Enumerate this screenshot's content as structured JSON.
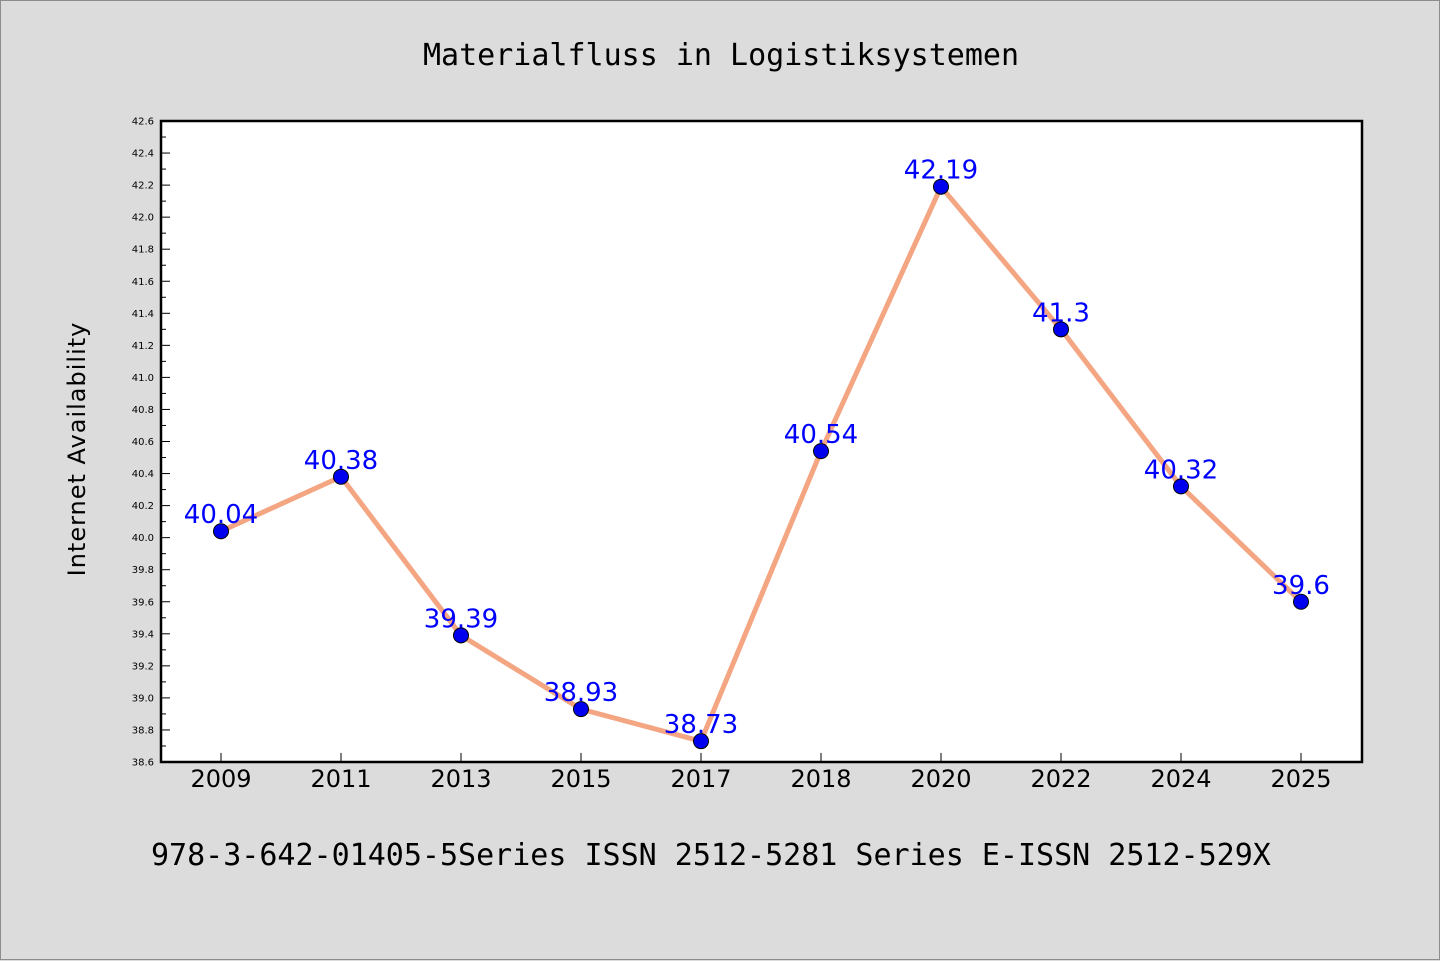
{
  "footer_text": "978-3-642-01405-5Series ISSN 2512-5281 Series E-ISSN 2512-529X",
  "colors": {
    "background": "#dcdcdc",
    "plot_background": "#ffffff",
    "line": "#f4a582",
    "marker": "#0000ee",
    "data_label": "#0000ff"
  },
  "chart_data": {
    "type": "line",
    "title": "Materialfluss in Logistiksystemen",
    "xlabel": "",
    "ylabel": "Internet Availability",
    "categories": [
      "2009",
      "2011",
      "2013",
      "2015",
      "2017",
      "2018",
      "2020",
      "2022",
      "2024",
      "2025"
    ],
    "series": [
      {
        "values": [
          40.04,
          40.38,
          39.39,
          38.93,
          38.73,
          40.54,
          42.19,
          41.3,
          40.32,
          39.6
        ],
        "labels": [
          "40.04",
          "40.38",
          "39.39",
          "38.93",
          "38.73",
          "40.54",
          "42.19",
          "41.3",
          "40.32",
          "39.6"
        ]
      }
    ],
    "ylim": [
      38.6,
      42.6
    ],
    "y_major_step": 0.2,
    "y_ticks": [
      "38.6",
      "38.8",
      "39.0",
      "39.2",
      "39.4",
      "39.6",
      "39.8",
      "40.0",
      "40.2",
      "40.4",
      "40.6",
      "40.8",
      "41.0",
      "41.2",
      "41.4",
      "41.6",
      "41.8",
      "42.0",
      "42.2",
      "42.4",
      "42.6"
    ],
    "grid": false,
    "legend": "none",
    "data_labels": true
  }
}
